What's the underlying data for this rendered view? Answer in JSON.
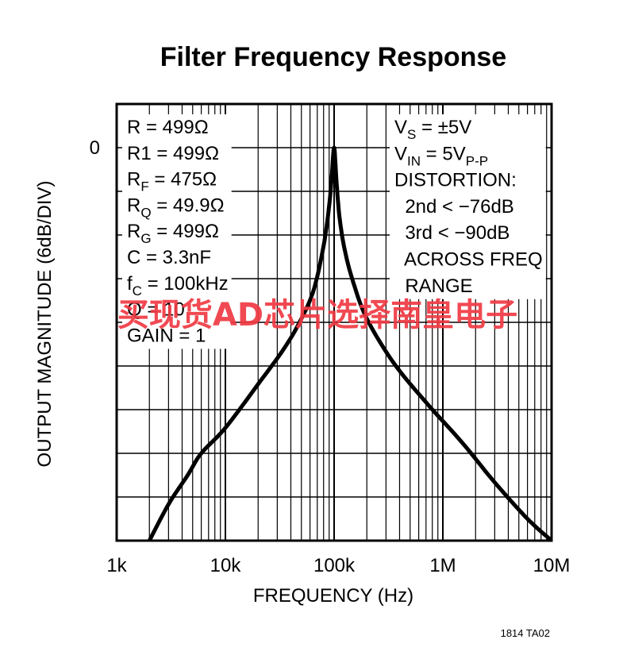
{
  "chart_data": {
    "type": "line",
    "title": "Filter Frequency Response",
    "xlabel": "FREQUENCY (Hz)",
    "ylabel": "OUTPUT MAGNITUDE (6dB/DIV)",
    "x_scale": "log",
    "xlim": [
      1000,
      10000000
    ],
    "ylim": [
      -54,
      6
    ],
    "y_major_step_db": 6,
    "x_ticks": [
      {
        "value": 1000,
        "label": "1k"
      },
      {
        "value": 10000,
        "label": "10k"
      },
      {
        "value": 100000,
        "label": "100k"
      },
      {
        "value": 1000000,
        "label": "1M"
      },
      {
        "value": 10000000,
        "label": "10M"
      }
    ],
    "y_ticks": [
      {
        "value": 0,
        "label": "0"
      }
    ],
    "grid": true,
    "series": [
      {
        "x": [
          2000,
          3000,
          4500,
          6000,
          10000,
          20000,
          35000,
          50000,
          65000,
          80000,
          90000,
          95000,
          100000,
          105000,
          112000,
          125000,
          150000,
          200000,
          350000,
          700000,
          1500000,
          3000000,
          6000000,
          10000000
        ],
        "y": [
          -54,
          -49,
          -45,
          -42,
          -38.5,
          -32.5,
          -27.5,
          -23.5,
          -19.5,
          -13.5,
          -8,
          -4,
          0,
          -4.5,
          -9.5,
          -14,
          -18.5,
          -23.5,
          -29.5,
          -35,
          -40.5,
          -46,
          -51,
          -54
        ]
      }
    ],
    "annotations": {
      "left": [
        {
          "main": "R = 499Ω",
          "sub": "",
          "rest": ""
        },
        {
          "main": "R1 = 499Ω",
          "sub": "",
          "rest": ""
        },
        {
          "main": "R",
          "sub": "F",
          "rest": " = 475Ω"
        },
        {
          "main": "R",
          "sub": "Q",
          "rest": " = 49.9Ω"
        },
        {
          "main": "R",
          "sub": "G",
          "rest": " = 499Ω"
        },
        {
          "main": "C = 3.3nF",
          "sub": "",
          "rest": ""
        },
        {
          "main": "f",
          "sub": "C",
          "rest": " = 100kHz"
        },
        {
          "main": "Q = 10",
          "sub": "",
          "rest": ""
        },
        {
          "main": "GAIN = 1",
          "sub": "",
          "rest": ""
        }
      ],
      "right": [
        {
          "main": "V",
          "sub": "S",
          "rest": " = ±5V",
          "sub2": ""
        },
        {
          "main": "V",
          "sub": "IN",
          "rest": " = 5V",
          "sub2": "P-P"
        },
        {
          "main": "DISTORTION:",
          "sub": "",
          "rest": "",
          "sub2": ""
        },
        {
          "main": "  2nd < −76dB",
          "sub": "",
          "rest": "",
          "sub2": ""
        },
        {
          "main": "  3rd < −90dB",
          "sub": "",
          "rest": "",
          "sub2": ""
        },
        {
          "main": "  ACROSS FREQ",
          "sub": "",
          "rest": "",
          "sub2": ""
        },
        {
          "main": "  RANGE",
          "sub": "",
          "rest": "",
          "sub2": ""
        }
      ]
    }
  },
  "figure_id": "1814 TA02",
  "watermark": "买现货AD芯片选择南皇电子"
}
